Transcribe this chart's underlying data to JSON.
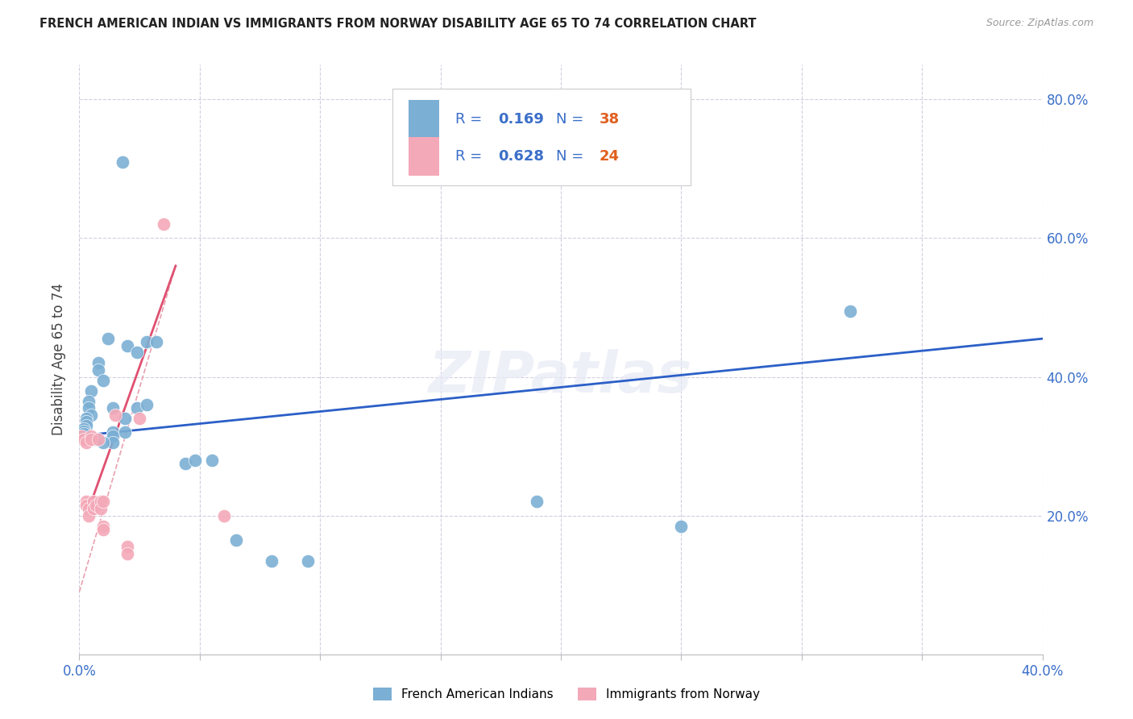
{
  "title": "FRENCH AMERICAN INDIAN VS IMMIGRANTS FROM NORWAY DISABILITY AGE 65 TO 74 CORRELATION CHART",
  "source": "Source: ZipAtlas.com",
  "ylabel": "Disability Age 65 to 74",
  "x_min": 0.0,
  "x_max": 0.4,
  "y_min": 0.0,
  "y_max": 0.85,
  "x_ticks": [
    0.0,
    0.05,
    0.1,
    0.15,
    0.2,
    0.25,
    0.3,
    0.35,
    0.4
  ],
  "y_ticks": [
    0.0,
    0.2,
    0.4,
    0.6,
    0.8
  ],
  "y_tick_labels_right": [
    "",
    "20.0%",
    "40.0%",
    "60.0%",
    "80.0%"
  ],
  "legend1_R": "0.169",
  "legend1_N": "38",
  "legend2_R": "0.628",
  "legend2_N": "24",
  "blue_scatter_color": "#7BAFD4",
  "pink_scatter_color": "#F4A9B8",
  "blue_line_color": "#2B5FC7",
  "pink_line_color": "#E05070",
  "pink_dashed_color": "#E8A0B0",
  "text_color_blue": "#3B6FC9",
  "watermark": "ZIPatlas",
  "blue_scatter": [
    [
      0.018,
      0.71
    ],
    [
      0.012,
      0.455
    ],
    [
      0.008,
      0.42
    ],
    [
      0.02,
      0.445
    ],
    [
      0.024,
      0.435
    ],
    [
      0.005,
      0.38
    ],
    [
      0.004,
      0.365
    ],
    [
      0.004,
      0.355
    ],
    [
      0.005,
      0.345
    ],
    [
      0.003,
      0.34
    ],
    [
      0.003,
      0.335
    ],
    [
      0.003,
      0.33
    ],
    [
      0.002,
      0.325
    ],
    [
      0.002,
      0.322
    ],
    [
      0.002,
      0.318
    ],
    [
      0.007,
      0.31
    ],
    [
      0.008,
      0.41
    ],
    [
      0.01,
      0.395
    ],
    [
      0.014,
      0.355
    ],
    [
      0.014,
      0.32
    ],
    [
      0.014,
      0.315
    ],
    [
      0.014,
      0.305
    ],
    [
      0.019,
      0.34
    ],
    [
      0.019,
      0.32
    ],
    [
      0.024,
      0.355
    ],
    [
      0.028,
      0.36
    ],
    [
      0.028,
      0.45
    ],
    [
      0.032,
      0.45
    ],
    [
      0.01,
      0.305
    ],
    [
      0.044,
      0.275
    ],
    [
      0.048,
      0.28
    ],
    [
      0.055,
      0.28
    ],
    [
      0.065,
      0.165
    ],
    [
      0.08,
      0.135
    ],
    [
      0.095,
      0.135
    ],
    [
      0.19,
      0.22
    ],
    [
      0.25,
      0.185
    ],
    [
      0.32,
      0.495
    ]
  ],
  "pink_scatter": [
    [
      0.001,
      0.315
    ],
    [
      0.002,
      0.31
    ],
    [
      0.003,
      0.305
    ],
    [
      0.003,
      0.22
    ],
    [
      0.003,
      0.215
    ],
    [
      0.004,
      0.21
    ],
    [
      0.004,
      0.2
    ],
    [
      0.005,
      0.315
    ],
    [
      0.005,
      0.31
    ],
    [
      0.006,
      0.22
    ],
    [
      0.006,
      0.21
    ],
    [
      0.007,
      0.215
    ],
    [
      0.008,
      0.31
    ],
    [
      0.009,
      0.22
    ],
    [
      0.009,
      0.21
    ],
    [
      0.01,
      0.22
    ],
    [
      0.01,
      0.185
    ],
    [
      0.01,
      0.18
    ],
    [
      0.015,
      0.345
    ],
    [
      0.02,
      0.155
    ],
    [
      0.02,
      0.145
    ],
    [
      0.025,
      0.34
    ],
    [
      0.035,
      0.62
    ],
    [
      0.06,
      0.2
    ]
  ],
  "blue_line": [
    [
      0.0,
      0.315
    ],
    [
      0.4,
      0.455
    ]
  ],
  "pink_line_solid": [
    [
      0.005,
      0.22
    ],
    [
      0.04,
      0.56
    ]
  ],
  "pink_line_dashed": [
    [
      0.0,
      0.09
    ],
    [
      0.04,
      0.56
    ]
  ]
}
